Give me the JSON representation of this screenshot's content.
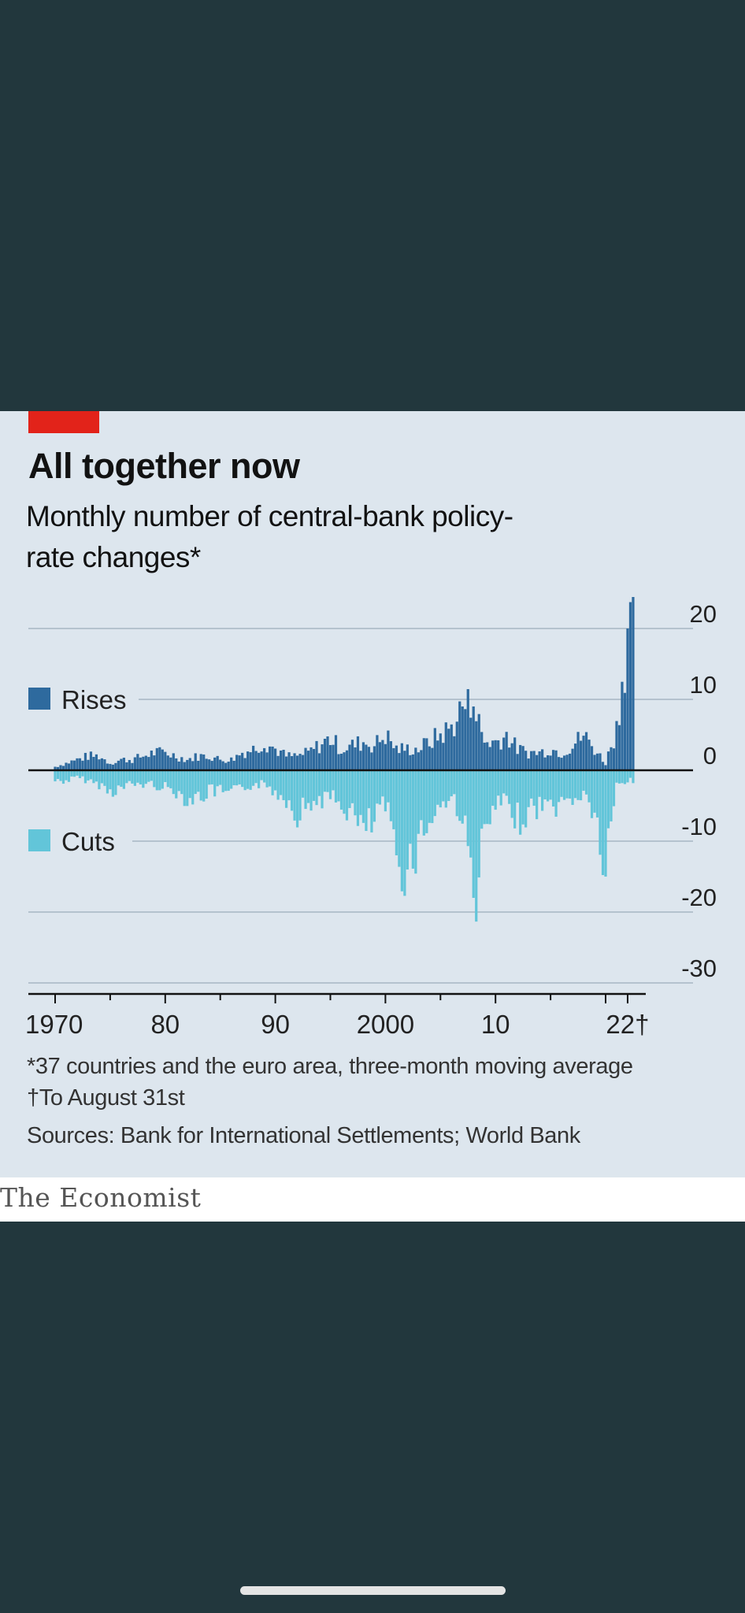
{
  "card": {
    "title": "All together now",
    "subtitle": "Monthly number of central-bank policy-rate changes*",
    "footnote": "*37 countries and the euro area, three-month moving average",
    "footnote2": "†To August 31st",
    "source": "Sources: Bank for International Settlements; World Bank"
  },
  "brand": {
    "name": "The Economist"
  },
  "colors": {
    "background": "#22373d",
    "card": "#dde6ee",
    "accent_red": "#e2231a",
    "rises": "#2e6a9e",
    "cuts": "#62c5d9"
  },
  "chart_data": {
    "type": "bar",
    "title": "All together now",
    "subtitle": "Monthly number of central-bank policy-rate changes*",
    "xlabel": "",
    "ylabel": "",
    "ylim": [
      -30,
      20
    ],
    "yticks": [
      20,
      10,
      0,
      -10,
      -20,
      -30
    ],
    "ytick_labels": [
      "20",
      "10",
      "0",
      "-10",
      "-20",
      "-30"
    ],
    "xlim": [
      1970,
      2022.67
    ],
    "xticks": [
      1970,
      1980,
      1990,
      2000,
      2010,
      2022
    ],
    "xtick_labels": [
      "1970",
      "80",
      "90",
      "2000",
      "10",
      "22†"
    ],
    "grid": true,
    "legend": [
      "Rises",
      "Cuts"
    ],
    "legend_position": "left",
    "series": [
      {
        "name": "Rises",
        "x": [
          1970,
          1971,
          1972,
          1973,
          1974,
          1975,
          1976,
          1977,
          1978,
          1979,
          1980,
          1981,
          1982,
          1983,
          1984,
          1985,
          1986,
          1987,
          1988,
          1989,
          1990,
          1991,
          1992,
          1993,
          1994,
          1995,
          1996,
          1997,
          1998,
          1999,
          2000,
          2001,
          2002,
          2003,
          2004,
          2005,
          2006,
          2007,
          2008,
          2009,
          2010,
          2011,
          2012,
          2013,
          2014,
          2015,
          2016,
          2017,
          2018,
          2019,
          2020,
          2021,
          2022
        ],
        "values": [
          0.5,
          1,
          1.5,
          2,
          2,
          1,
          1.5,
          1.5,
          2,
          2.5,
          2.5,
          2,
          1.5,
          2,
          2,
          1.5,
          1.5,
          2.5,
          3,
          4,
          3,
          2,
          2,
          2.5,
          3.5,
          4.5,
          3,
          3.5,
          4,
          3.5,
          5,
          3,
          3,
          3,
          4,
          5,
          6,
          9,
          9,
          4,
          4,
          5,
          3,
          2.5,
          2.5,
          3,
          2.5,
          3.5,
          5,
          3,
          1,
          6,
          20
        ]
      },
      {
        "name": "Cuts",
        "x": [
          1970,
          1971,
          1972,
          1973,
          1974,
          1975,
          1976,
          1977,
          1978,
          1979,
          1980,
          1981,
          1982,
          1983,
          1984,
          1985,
          1986,
          1987,
          1988,
          1989,
          1990,
          1991,
          1992,
          1993,
          1994,
          1995,
          1996,
          1997,
          1998,
          1999,
          2000,
          2001,
          2002,
          2003,
          2004,
          2005,
          2006,
          2007,
          2008,
          2009,
          2010,
          2011,
          2012,
          2013,
          2014,
          2015,
          2016,
          2017,
          2018,
          2019,
          2020,
          2021,
          2022
        ],
        "values": [
          -1.5,
          -1.5,
          -1,
          -1.5,
          -2,
          -3,
          -2.5,
          -2,
          -2,
          -2,
          -2.5,
          -3,
          -4,
          -4,
          -3,
          -3,
          -3.5,
          -2.5,
          -2,
          -2,
          -3,
          -4,
          -6,
          -5,
          -4,
          -4,
          -5,
          -6,
          -9,
          -7,
          -5,
          -12,
          -14,
          -10,
          -7,
          -5,
          -4,
          -6,
          -18,
          -10,
          -5,
          -5,
          -7,
          -6,
          -5,
          -5,
          -5,
          -4,
          -3.5,
          -6,
          -15,
          -2,
          -1.5
        ]
      }
    ]
  }
}
